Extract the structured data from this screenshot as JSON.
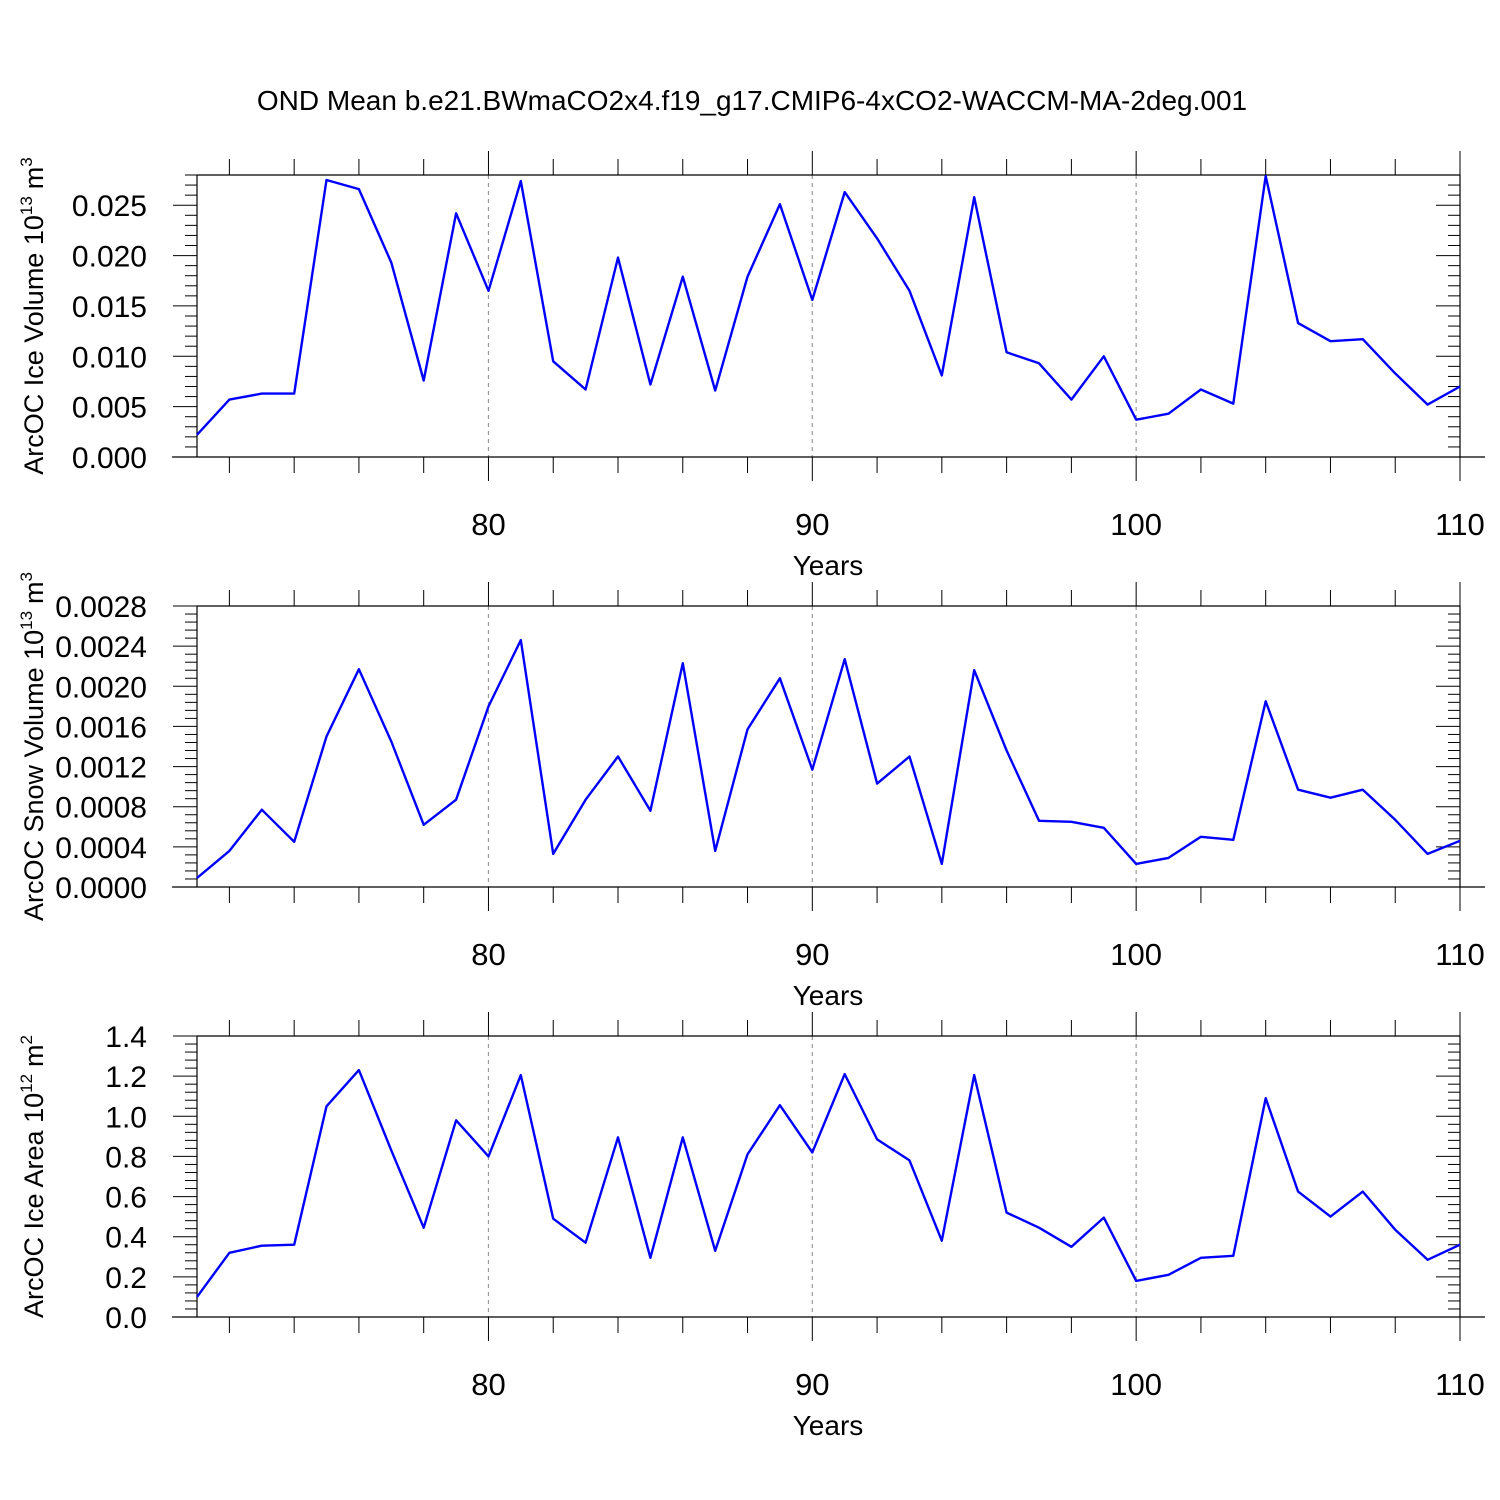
{
  "title": "OND Mean b.e21.BWmaCO2x4.f19_g17.CMIP6-4xCO2-WACCM-MA-2deg.001",
  "chart_data": [
    {
      "type": "line",
      "ylabel": {
        "text": "ArcOC Ice Volume 10",
        "exp": "13",
        "unit_base": "m",
        "unit_exp": "3"
      },
      "xlabel": "Years",
      "xlim": [
        71,
        110
      ],
      "ylim": [
        0,
        0.028
      ],
      "yticks": [
        "0.000",
        "0.005",
        "0.010",
        "0.015",
        "0.020",
        "0.025"
      ],
      "ytick_values": [
        0,
        0.005,
        0.01,
        0.015,
        0.02,
        0.025
      ],
      "xticks": [
        "80",
        "90",
        "100",
        "110"
      ],
      "xtick_values": [
        80,
        90,
        100,
        110
      ],
      "grid_x": [
        80,
        90,
        100
      ],
      "series": [
        {
          "name": "ice_volume",
          "color": "#0000ff",
          "x": [
            71,
            72,
            73,
            74,
            75,
            76,
            77,
            78,
            79,
            80,
            81,
            82,
            83,
            84,
            85,
            86,
            87,
            88,
            89,
            90,
            91,
            92,
            93,
            94,
            95,
            96,
            97,
            98,
            99,
            100,
            101,
            102,
            103,
            104,
            105,
            106,
            107,
            108,
            109,
            110
          ],
          "values": [
            0.0022,
            0.0057,
            0.0063,
            0.0063,
            0.0275,
            0.0266,
            0.0193,
            0.0076,
            0.0242,
            0.0165,
            0.0274,
            0.0095,
            0.0067,
            0.0198,
            0.0072,
            0.0179,
            0.0066,
            0.0179,
            0.0251,
            0.0156,
            0.0263,
            0.0217,
            0.0165,
            0.0081,
            0.0258,
            0.0104,
            0.0093,
            0.0057,
            0.01,
            0.0037,
            0.0043,
            0.0067,
            0.0053,
            0.0279,
            0.0133,
            0.0115,
            0.0117,
            0.0083,
            0.0052,
            0.007
          ]
        }
      ]
    },
    {
      "type": "line",
      "ylabel": {
        "text": "ArcOC Snow Volume 10",
        "exp": "13",
        "unit_base": "m",
        "unit_exp": "3"
      },
      "xlabel": "Years",
      "xlim": [
        71,
        110
      ],
      "ylim": [
        0,
        0.0028
      ],
      "yticks": [
        "0.0000",
        "0.0004",
        "0.0008",
        "0.0012",
        "0.0016",
        "0.0020",
        "0.0024",
        "0.0028"
      ],
      "ytick_values": [
        0,
        0.0004,
        0.0008,
        0.0012,
        0.0016,
        0.002,
        0.0024,
        0.0028
      ],
      "xticks": [
        "80",
        "90",
        "100",
        "110"
      ],
      "xtick_values": [
        80,
        90,
        100,
        110
      ],
      "grid_x": [
        80,
        90,
        100
      ],
      "series": [
        {
          "name": "snow_volume",
          "color": "#0000ff",
          "x": [
            71,
            72,
            73,
            74,
            75,
            76,
            77,
            78,
            79,
            80,
            81,
            82,
            83,
            84,
            85,
            86,
            87,
            88,
            89,
            90,
            91,
            92,
            93,
            94,
            95,
            96,
            97,
            98,
            99,
            100,
            101,
            102,
            103,
            104,
            105,
            106,
            107,
            108,
            109,
            110
          ],
          "values": [
            9e-05,
            0.00036,
            0.00077,
            0.00045,
            0.0015,
            0.00217,
            0.00145,
            0.00062,
            0.00087,
            0.0018,
            0.00246,
            0.00033,
            0.00087,
            0.0013,
            0.00076,
            0.00223,
            0.00036,
            0.00157,
            0.00208,
            0.00117,
            0.00227,
            0.00103,
            0.0013,
            0.00023,
            0.00216,
            0.00136,
            0.00066,
            0.00065,
            0.00059,
            0.00023,
            0.00029,
            0.0005,
            0.00047,
            0.00185,
            0.00097,
            0.00089,
            0.00097,
            0.00067,
            0.00033,
            0.00046
          ]
        }
      ]
    },
    {
      "type": "line",
      "ylabel": {
        "text": "ArcOC Ice Area 10",
        "exp": "12",
        "unit_base": "m",
        "unit_exp": "2"
      },
      "xlabel": "Years",
      "xlim": [
        71,
        110
      ],
      "ylim": [
        0,
        1.4
      ],
      "yticks": [
        "0.0",
        "0.2",
        "0.4",
        "0.6",
        "0.8",
        "1.0",
        "1.2",
        "1.4"
      ],
      "ytick_values": [
        0,
        0.2,
        0.4,
        0.6,
        0.8,
        1.0,
        1.2,
        1.4
      ],
      "xticks": [
        "80",
        "90",
        "100",
        "110"
      ],
      "xtick_values": [
        80,
        90,
        100,
        110
      ],
      "grid_x": [
        80,
        90,
        100
      ],
      "series": [
        {
          "name": "ice_area",
          "color": "#0000ff",
          "x": [
            71,
            72,
            73,
            74,
            75,
            76,
            77,
            78,
            79,
            80,
            81,
            82,
            83,
            84,
            85,
            86,
            87,
            88,
            89,
            90,
            91,
            92,
            93,
            94,
            95,
            96,
            97,
            98,
            99,
            100,
            101,
            102,
            103,
            104,
            105,
            106,
            107,
            108,
            109,
            110
          ],
          "values": [
            0.1,
            0.32,
            0.355,
            0.36,
            1.05,
            1.23,
            0.83,
            0.445,
            0.98,
            0.8,
            1.205,
            0.49,
            0.37,
            0.895,
            0.295,
            0.895,
            0.33,
            0.81,
            1.055,
            0.82,
            1.21,
            0.885,
            0.78,
            0.38,
            1.205,
            0.52,
            0.445,
            0.35,
            0.495,
            0.18,
            0.21,
            0.295,
            0.305,
            1.09,
            0.625,
            0.5,
            0.625,
            0.435,
            0.285,
            0.36
          ]
        }
      ]
    }
  ]
}
